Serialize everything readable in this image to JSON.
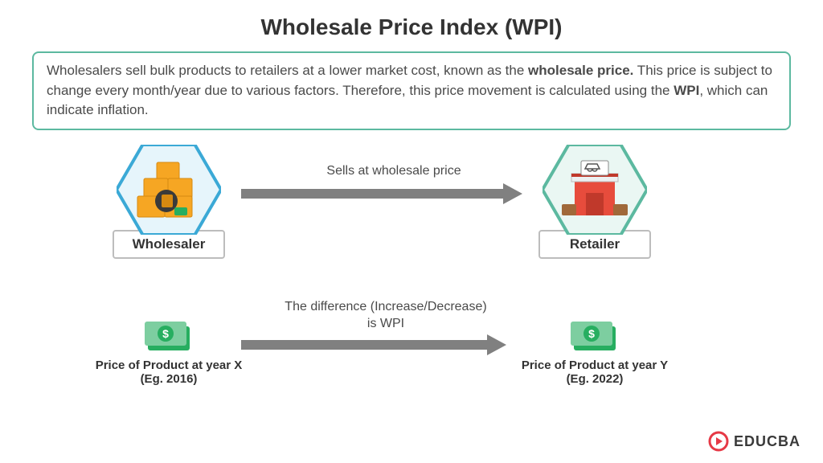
{
  "title": "Wholesale Price Index (WPI)",
  "description_html": "Wholesalers sell bulk products to retailers at a lower market cost, known as the <b>wholesale price.</b> This price is subject to change every month/year due to various factors. Therefore, this price movement is calculated using the <b>WPI</b>, which can indicate inflation.",
  "colors": {
    "border_teal": "#5cb9a0",
    "hex_blue_stroke": "#3ba9d6",
    "hex_blue_fill": "#e6f5fb",
    "hex_teal_stroke": "#5cb9a0",
    "hex_teal_fill": "#eaf7f3",
    "arrow_gray": "#808080",
    "text_dark": "#333333",
    "box_yellow": "#f6a623",
    "box_dark": "#d68910",
    "store_red": "#e74c3c",
    "store_dark": "#c0392b",
    "store_roof": "#ecf0f1",
    "money_green": "#27ae60",
    "money_light": "#7dcea0",
    "brand_red": "#e63946"
  },
  "nodes": {
    "wholesaler": {
      "label": "Wholesaler"
    },
    "retailer": {
      "label": "Retailer"
    }
  },
  "arrow1": {
    "label": "Sells at wholesale price"
  },
  "arrow2": {
    "label": "The difference (Increase/Decrease) is WPI"
  },
  "price_x": {
    "line1": "Price of Product at year X",
    "line2": "(Eg. 2016)"
  },
  "price_y": {
    "line1": "Price of Product at year Y",
    "line2": "(Eg. 2022)"
  },
  "brand": {
    "text": "EDUCBA"
  }
}
